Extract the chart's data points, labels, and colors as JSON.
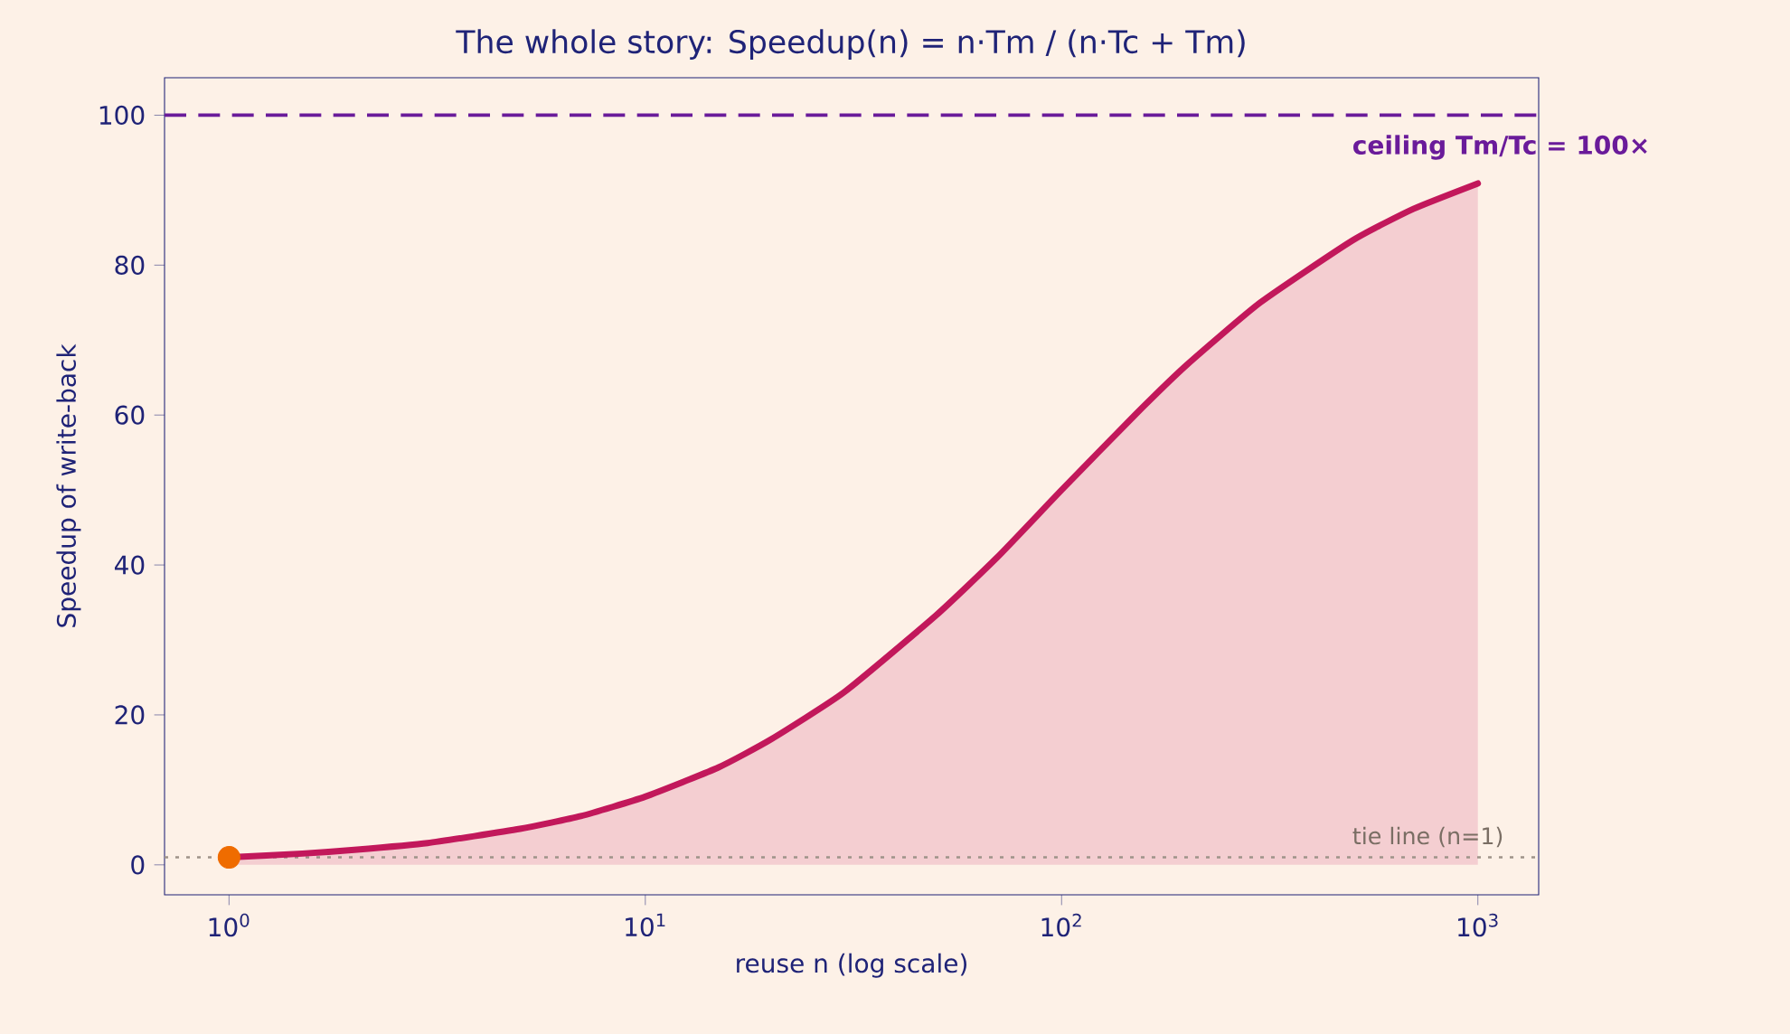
{
  "chart_data": {
    "type": "area",
    "title": "The whole story: Speedup(n) = n·Tm / (n·Tc + Tm)",
    "xlabel": "reuse n (log scale)",
    "ylabel": "Speedup of write-back",
    "log": "x",
    "xlim": [
      0.7,
      1400
    ],
    "ylim": [
      -4,
      105
    ],
    "xticks": [
      {
        "value": 1,
        "label": "10$^{0}$"
      },
      {
        "value": 10,
        "label": "10$^{1}$"
      },
      {
        "value": 100,
        "label": "10$^{2}$"
      },
      {
        "value": 1000,
        "label": "10$^{3}$"
      }
    ],
    "yticks": [
      0,
      20,
      40,
      60,
      80,
      100
    ],
    "grid": false,
    "series": [
      {
        "color": "#c2185b",
        "line_style": "solid",
        "marker": "none",
        "x": [
          1,
          1.5,
          2,
          3,
          5,
          7,
          10,
          15,
          20,
          30,
          50,
          70,
          100,
          150,
          200,
          300,
          500,
          700,
          1000
        ],
        "values": [
          1,
          1.5,
          2,
          2.9,
          4.8,
          6.5,
          9.1,
          13,
          16.7,
          23,
          33.3,
          41,
          50,
          60,
          66.7,
          75,
          83.3,
          87.5,
          90.9
        ]
      },
      {
        "type": "scatter",
        "color": "#ef6c00",
        "marker": "circle",
        "x": [
          1
        ],
        "values": [
          1
        ]
      }
    ],
    "ref_lines": [
      {
        "axis": "y",
        "value": 100,
        "label": "ceiling Tm/Tc = 100×",
        "color": "#6a1b9a",
        "line_style": "dashed"
      },
      {
        "axis": "y",
        "value": 1,
        "label": "tie line (n=1)",
        "color": "#9e9389",
        "line_style": "dotted"
      }
    ]
  }
}
